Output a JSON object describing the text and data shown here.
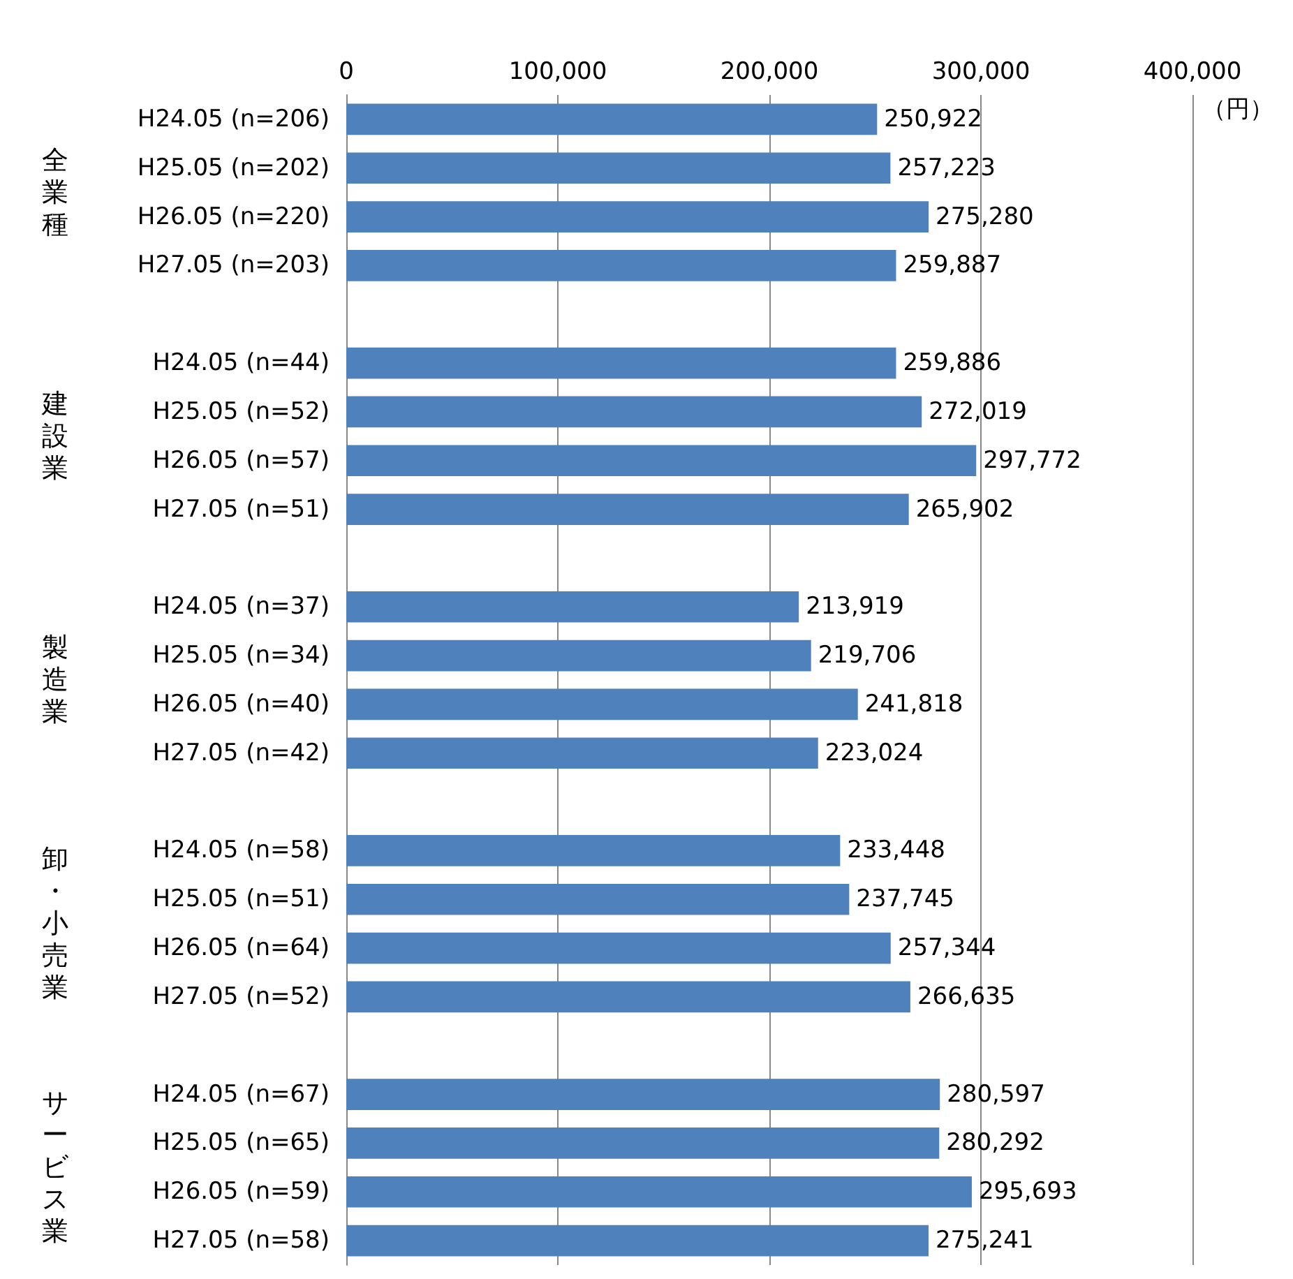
{
  "chart_data": {
    "type": "bar",
    "orientation": "horizontal",
    "xlabel": "（円）",
    "categories": [
      "H24.05 (n=206)",
      "H25.05 (n=202)",
      "H26.05 (n=220)",
      "H27.05 (n=203)",
      null,
      "H24.05 (n=44)",
      "H25.05 (n=52)",
      "H26.05 (n=57)",
      "H27.05 (n=51)",
      null,
      "H24.05 (n=37)",
      "H25.05 (n=34)",
      "H26.05 (n=40)",
      "H27.05 (n=42)",
      null,
      "H24.05 (n=58)",
      "H25.05 (n=51)",
      "H26.05 (n=64)",
      "H27.05 (n=52)",
      null,
      "H24.05 (n=67)",
      "H25.05 (n=65)",
      "H26.05 (n=59)",
      "H27.05 (n=58)"
    ],
    "values": [
      250922,
      257223,
      275280,
      259887,
      null,
      259886,
      272019,
      297772,
      265902,
      null,
      213919,
      219706,
      241818,
      223024,
      null,
      233448,
      237745,
      257344,
      266635,
      null,
      280597,
      280292,
      295693,
      275241
    ],
    "value_labels": [
      "250,922",
      "257,223",
      "275,280",
      "259,887",
      null,
      "259,886",
      "272,019",
      "297,772",
      "265,902",
      null,
      "213,919",
      "219,706",
      "241,818",
      "223,024",
      null,
      "233,448",
      "237,745",
      "257,344",
      "266,635",
      null,
      "280,597",
      "280,292",
      "295,693",
      "275,241"
    ],
    "color": "#4f81bd",
    "xlim": [
      0,
      400000
    ],
    "xticks": [
      0,
      {
        "value": 100000,
        "label": "100,000"
      },
      {
        "value": 200000,
        "label": "200,000"
      },
      {
        "value": 300000,
        "label": "300,000"
      },
      {
        "value": 400000,
        "label": "400,000"
      }
    ],
    "grid": "x",
    "annotations": [
      "全業種",
      "建設業",
      "製造業",
      "卸・小売業",
      "サービス業"
    ]
  }
}
